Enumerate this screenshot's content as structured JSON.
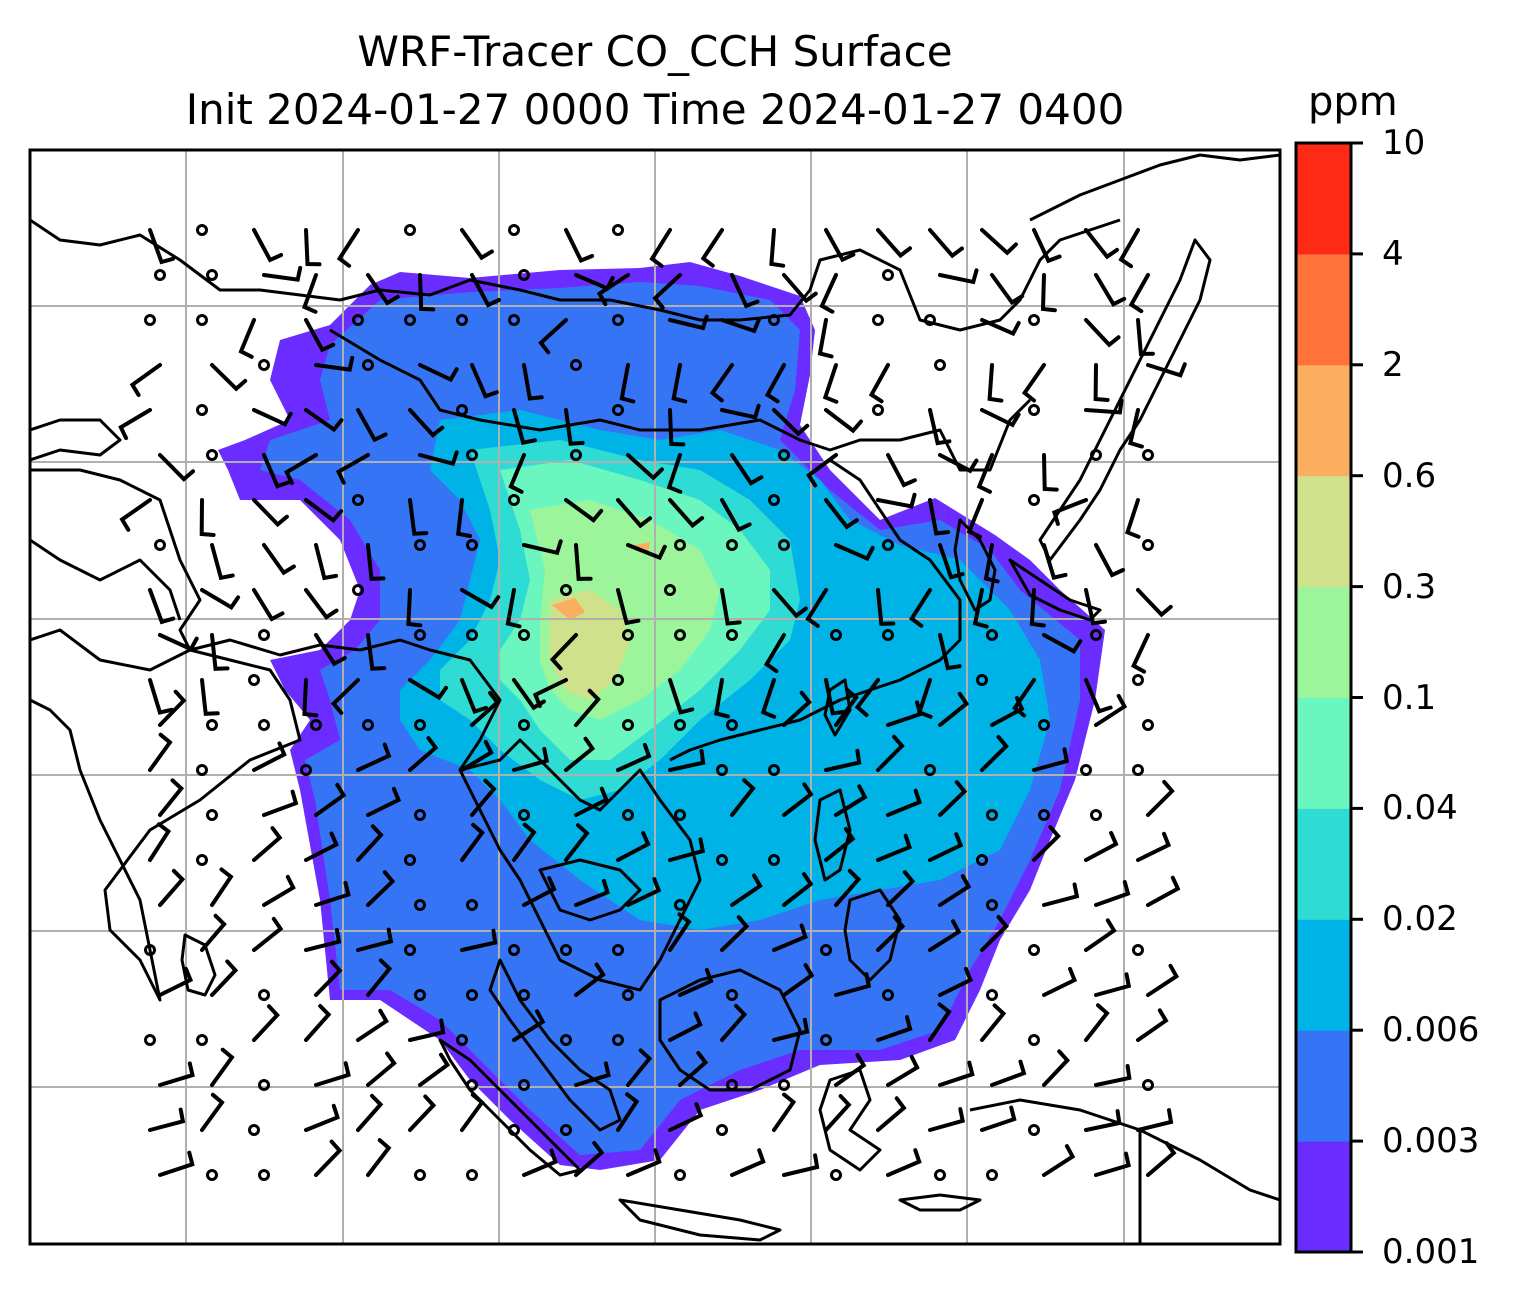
{
  "title": {
    "line1": "WRF-Tracer CO_CCH Surface",
    "line2": "Init 2024-01-27 0000 Time 2024-01-27 0400"
  },
  "colorbar": {
    "unit": "ppm",
    "levels": [
      "0.001",
      "0.003",
      "0.006",
      "0.02",
      "0.04",
      "0.1",
      "0.3",
      "0.6",
      "2",
      "4",
      "10"
    ],
    "colors": [
      "#6a2cff",
      "#3575f5",
      "#00b3e6",
      "#2fdcd4",
      "#6bf5bf",
      "#9df59b",
      "#cfe18a",
      "#fbad60",
      "#ff7239",
      "#ff2a16"
    ]
  },
  "map": {
    "gridlines": true,
    "coastlines": true,
    "wind_barbs": true
  }
}
